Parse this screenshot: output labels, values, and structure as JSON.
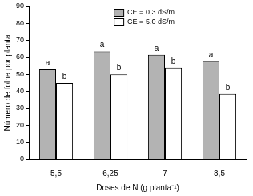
{
  "chart_data": {
    "type": "bar",
    "x_label": "Doses de N (g planta⁻¹)",
    "y_label": "Número de folha por planta",
    "categories": [
      "5,5",
      "6,25",
      "7",
      "8,5"
    ],
    "series": [
      {
        "name": "CE = 0,3 dS/m",
        "color": "#b3b3b3",
        "values": [
          53,
          63.5,
          61.5,
          57.5
        ],
        "annotations": [
          "a",
          "a",
          "a",
          "a"
        ]
      },
      {
        "name": "CE = 5,0 dS/m",
        "color": "#ffffff",
        "values": [
          45,
          50,
          54,
          38.5
        ],
        "annotations": [
          "b",
          "b",
          "b",
          "b"
        ]
      }
    ],
    "ylim": [
      0,
      90
    ],
    "yticks": [
      0,
      10,
      20,
      30,
      40,
      50,
      60,
      70,
      80,
      90
    ],
    "grid": false,
    "legend": "upper center"
  }
}
